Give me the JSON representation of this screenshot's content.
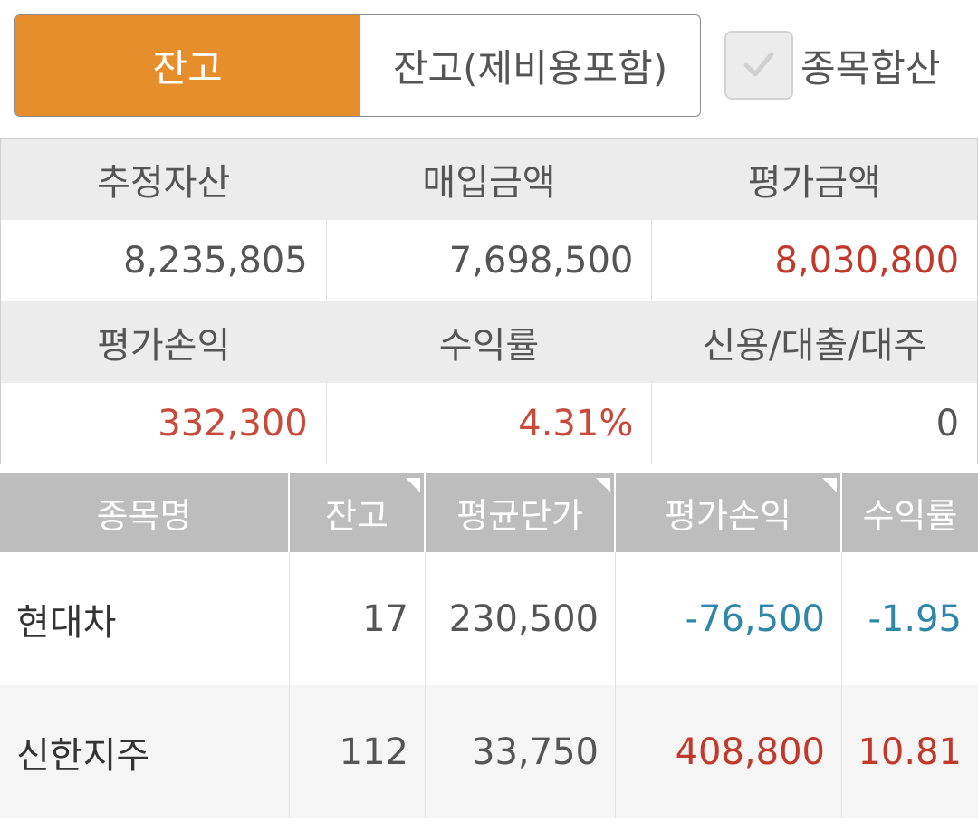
{
  "tabs": {
    "active_label": "잔고",
    "inactive_label": "잔고(제비용포함)"
  },
  "merge_option": {
    "label": "종목합산",
    "checked": false
  },
  "summary": {
    "headers_row1": [
      "추정자산",
      "매입금액",
      "평가금액"
    ],
    "values_row1": [
      "8,235,805",
      "7,698,500",
      "8,030,800"
    ],
    "headers_row2": [
      "평가손익",
      "수익률",
      "신용/대출/대주"
    ],
    "values_row2": [
      "332,300",
      "4.31%",
      "0"
    ]
  },
  "holdings": {
    "columns": [
      "종목명",
      "잔고",
      "평균단가",
      "평가손익",
      "수익률"
    ],
    "rows": [
      {
        "name": "현대차",
        "qty": "17",
        "avg_price": "230,500",
        "pnl": "-76,500",
        "rate": "-1.95"
      },
      {
        "name": "신한지주",
        "qty": "112",
        "avg_price": "33,750",
        "pnl": "408,800",
        "rate": "10.81"
      }
    ]
  },
  "colors": {
    "accent": "#e58e2b",
    "profit": "#c0392b",
    "loss": "#2e86a8",
    "header_bg": "#bdbdbd"
  }
}
